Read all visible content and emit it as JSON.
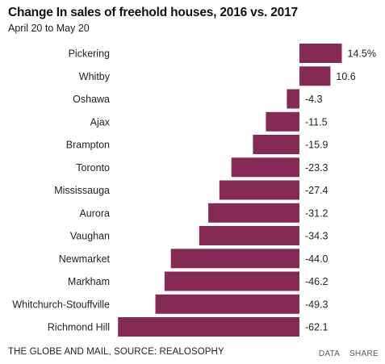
{
  "header": {
    "title": "Change In sales of freehold houses, 2016 vs. 2017",
    "subtitle": "April 20 to May 20"
  },
  "footer": {
    "source": "THE GLOBE AND MAIL, SOURCE: REALOSOPHY",
    "data_label": "DATA",
    "share_label": "SHARE"
  },
  "colors": {
    "bar": "#852a55"
  },
  "chart_data": {
    "type": "bar",
    "orientation": "horizontal",
    "title": "Change In sales of freehold houses, 2016 vs. 2017",
    "subtitle": "April 20 to May 20",
    "categories": [
      "Pickering",
      "Whitby",
      "Oshawa",
      "Ajax",
      "Brampton",
      "Toronto",
      "Mississauga",
      "Aurora",
      "Vaughan",
      "Newmarket",
      "Markham",
      "Whitchurch-Stouffville",
      "Richmond Hill"
    ],
    "values": [
      14.5,
      10.6,
      -4.3,
      -11.5,
      -15.9,
      -23.3,
      -27.4,
      -31.2,
      -34.3,
      -44.0,
      -46.2,
      -49.3,
      -62.1
    ],
    "value_labels": [
      "14.5%",
      "10.6",
      "-4.3",
      "-11.5",
      "-15.9",
      "-23.3",
      "-27.4",
      "-31.2",
      "-34.3",
      "-44.0",
      "-46.2",
      "-49.3",
      "-62.1"
    ],
    "xlim": [
      -62.1,
      14.5
    ],
    "grid": false,
    "legend": "none"
  }
}
